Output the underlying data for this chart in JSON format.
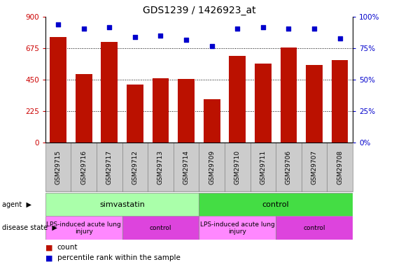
{
  "title": "GDS1239 / 1426923_at",
  "samples": [
    "GSM29715",
    "GSM29716",
    "GSM29717",
    "GSM29712",
    "GSM29713",
    "GSM29714",
    "GSM29709",
    "GSM29710",
    "GSM29711",
    "GSM29706",
    "GSM29707",
    "GSM29708"
  ],
  "counts": [
    755,
    490,
    720,
    415,
    460,
    455,
    310,
    620,
    565,
    680,
    555,
    590
  ],
  "percentiles": [
    94,
    91,
    92,
    84,
    85,
    82,
    77,
    91,
    92,
    91,
    91,
    83
  ],
  "bar_color": "#bb1100",
  "dot_color": "#0000cc",
  "ylim_left": [
    0,
    900
  ],
  "ylim_right": [
    0,
    100
  ],
  "yticks_left": [
    0,
    225,
    450,
    675,
    900
  ],
  "yticks_right": [
    0,
    25,
    50,
    75,
    100
  ],
  "agent_labels": [
    {
      "text": "simvastatin",
      "start": 0,
      "end": 6,
      "color": "#aaffaa"
    },
    {
      "text": "control",
      "start": 6,
      "end": 12,
      "color": "#44dd44"
    }
  ],
  "disease_labels": [
    {
      "text": "LPS-induced acute lung\ninjury",
      "start": 0,
      "end": 3,
      "color": "#ff88ff"
    },
    {
      "text": "control",
      "start": 3,
      "end": 6,
      "color": "#dd44dd"
    },
    {
      "text": "LPS-induced acute lung\ninjury",
      "start": 6,
      "end": 9,
      "color": "#ff88ff"
    },
    {
      "text": "control",
      "start": 9,
      "end": 12,
      "color": "#dd44dd"
    }
  ],
  "legend_count_color": "#bb1100",
  "legend_pct_color": "#0000cc",
  "left_label_color": "#cc0000",
  "right_label_color": "#0000cc",
  "sample_bg": "#cccccc",
  "fig_width": 5.63,
  "fig_height": 3.75,
  "dpi": 100
}
